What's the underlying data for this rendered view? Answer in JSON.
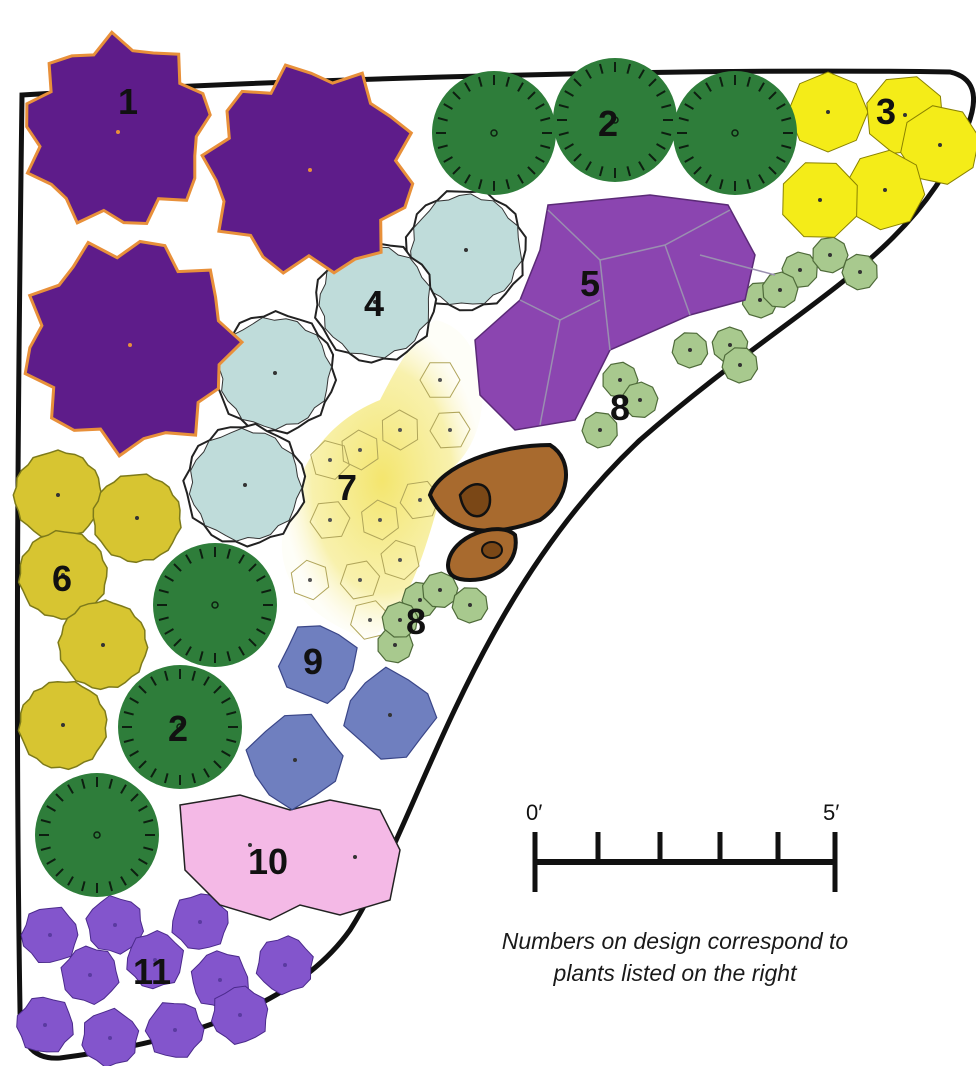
{
  "colors": {
    "bed_outline": "#111111",
    "plant_1": "#5e1c8a",
    "plant_1_edge": "#e8903a",
    "plant_2": "#2e7d3a",
    "plant_3": "#f4ec18",
    "plant_4": "#bfdcda",
    "plant_5": "#8b45b0",
    "plant_6": "#d7c531",
    "plant_7": "#f5eb8a",
    "plant_8": "#a8c98e",
    "plant_9": "#6f7fbf",
    "plant_10": "#f4b9e6",
    "plant_11": "#8355cc",
    "boulder": "#a86a2e"
  },
  "labels": {
    "n1": "1",
    "n2a": "2",
    "n2b": "2",
    "n3": "3",
    "n4": "4",
    "n5": "5",
    "n6": "6",
    "n7": "7",
    "n8a": "8",
    "n8b": "8",
    "n9": "9",
    "n10": "10",
    "n11": "11"
  },
  "scale": {
    "start_label": "0′",
    "end_label": "5′"
  },
  "caption": "Numbers on design correspond to plants listed on the right"
}
